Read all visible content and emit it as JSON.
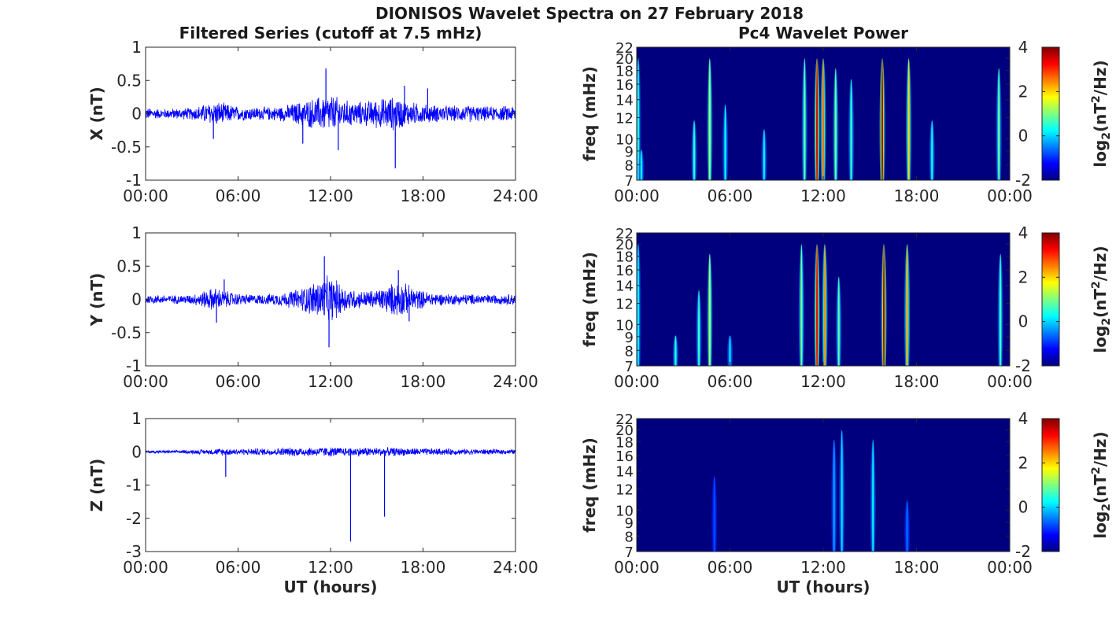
{
  "figure": {
    "title": "DIONISOS Wavelet Spectra on 27 February 2018",
    "left_title": "Filtered Series (cutoff at 7.5 mHz)",
    "right_title": "Pc4 Wavelet Power",
    "time_xlabel": "UT (hours)",
    "colorbar_label_base": "log",
    "colorbar_label_sub": "2",
    "colorbar_label_mid": "(nT",
    "colorbar_label_sup": "2",
    "colorbar_label_end": "/Hz)"
  },
  "chart_data": [
    {
      "type": "line",
      "panel": "X",
      "ylabel": "X (nT)",
      "xlim": [
        "00:00",
        "24:00"
      ],
      "ylim": [
        -1,
        1
      ],
      "xticks": [
        "00:00",
        "06:00",
        "12:00",
        "18:00",
        "24:00"
      ],
      "yticks": [
        "1",
        "0.5",
        "0",
        "-0.5",
        "-1"
      ],
      "ytick_values": [
        1,
        0.5,
        0,
        -0.5,
        -1
      ],
      "series_color": "#0000ff",
      "envelope": {
        "hours": [
          0,
          1,
          2,
          3,
          4,
          4.5,
          5,
          6,
          7,
          8,
          9,
          10,
          11,
          11.5,
          12,
          12.5,
          13,
          14,
          15,
          16,
          16.5,
          17,
          18,
          19,
          20,
          21,
          22,
          23,
          24
        ],
        "amplitude": [
          0.1,
          0.08,
          0.09,
          0.1,
          0.17,
          0.22,
          0.18,
          0.12,
          0.11,
          0.11,
          0.13,
          0.2,
          0.26,
          0.3,
          0.32,
          0.27,
          0.22,
          0.2,
          0.24,
          0.28,
          0.26,
          0.2,
          0.16,
          0.14,
          0.13,
          0.14,
          0.12,
          0.12,
          0.14
        ]
      },
      "spikes": [
        {
          "hour": 4.4,
          "value": -0.38
        },
        {
          "hour": 10.2,
          "value": -0.45
        },
        {
          "hour": 11.7,
          "value": 0.68
        },
        {
          "hour": 12.5,
          "value": -0.55
        },
        {
          "hour": 16.2,
          "value": -0.82
        },
        {
          "hour": 16.8,
          "value": 0.42
        },
        {
          "hour": 18.3,
          "value": 0.38
        }
      ]
    },
    {
      "type": "line",
      "panel": "Y",
      "ylabel": "Y (nT)",
      "xlim": [
        "00:00",
        "24:00"
      ],
      "ylim": [
        -1,
        1
      ],
      "xticks": [
        "00:00",
        "06:00",
        "12:00",
        "18:00",
        "24:00"
      ],
      "yticks": [
        "1",
        "0.5",
        "0",
        "-0.5",
        "-1"
      ],
      "ytick_values": [
        1,
        0.5,
        0,
        -0.5,
        -1
      ],
      "series_color": "#0000ff",
      "envelope": {
        "hours": [
          0,
          1,
          2,
          3,
          4,
          4.5,
          5,
          6,
          7,
          8,
          9,
          10,
          11,
          11.5,
          12,
          12.5,
          13,
          14,
          15,
          16,
          16.5,
          17,
          18,
          19,
          20,
          21,
          22,
          23,
          24
        ],
        "amplitude": [
          0.08,
          0.07,
          0.07,
          0.08,
          0.16,
          0.2,
          0.15,
          0.1,
          0.08,
          0.09,
          0.12,
          0.18,
          0.3,
          0.36,
          0.38,
          0.3,
          0.2,
          0.14,
          0.16,
          0.26,
          0.3,
          0.24,
          0.14,
          0.1,
          0.09,
          0.09,
          0.08,
          0.08,
          0.1
        ]
      },
      "spikes": [
        {
          "hour": 4.6,
          "value": -0.35
        },
        {
          "hour": 5.1,
          "value": 0.3
        },
        {
          "hour": 11.6,
          "value": 0.65
        },
        {
          "hour": 11.9,
          "value": -0.72
        },
        {
          "hour": 16.4,
          "value": 0.44
        },
        {
          "hour": 17.1,
          "value": -0.33
        }
      ]
    },
    {
      "type": "line",
      "panel": "Z",
      "ylabel": "Z (nT)",
      "xlim": [
        "00:00",
        "24:00"
      ],
      "ylim": [
        -3,
        1
      ],
      "xticks": [
        "00:00",
        "06:00",
        "12:00",
        "18:00",
        "24:00"
      ],
      "yticks": [
        "1",
        "0",
        "-1",
        "-2",
        "-3"
      ],
      "ytick_values": [
        1,
        0,
        -1,
        -2,
        -3
      ],
      "series_color": "#0000ff",
      "envelope": {
        "hours": [
          0,
          2,
          4,
          5,
          6,
          8,
          10,
          12,
          13,
          14,
          16,
          18,
          20,
          22,
          24
        ],
        "amplitude": [
          0.05,
          0.05,
          0.08,
          0.12,
          0.1,
          0.12,
          0.15,
          0.16,
          0.14,
          0.15,
          0.14,
          0.12,
          0.1,
          0.09,
          0.08
        ]
      },
      "spikes": [
        {
          "hour": 5.2,
          "value": -0.75
        },
        {
          "hour": 13.3,
          "value": -2.7
        },
        {
          "hour": 15.5,
          "value": -1.95
        }
      ]
    },
    {
      "type": "heatmap",
      "panel": "X power",
      "ylabel": "freq (mHz)",
      "xticks": [
        "00:00",
        "06:00",
        "12:00",
        "18:00",
        "00:00"
      ],
      "yticks": [
        "22",
        "20",
        "18",
        "16",
        "14",
        "12",
        "10",
        "9",
        "8",
        "7"
      ],
      "ytick_values": [
        22,
        20,
        18,
        16,
        14,
        12,
        10,
        9,
        8,
        7
      ],
      "ylim_mhz": [
        7,
        22
      ],
      "yscale": "log",
      "clim": [
        -2,
        4
      ],
      "colorbar_ticks": [
        "4",
        "2",
        "0",
        "-2"
      ],
      "colormap": "jet",
      "background_color": "#00007f",
      "bursts": [
        {
          "hour": 0.1,
          "fmin": 7,
          "fmax": 22,
          "peak": 0.5
        },
        {
          "hour": 0.3,
          "fmin": 7,
          "fmax": 9,
          "peak": 0.2
        },
        {
          "hour": 3.7,
          "fmin": 7,
          "fmax": 12,
          "peak": 0.6
        },
        {
          "hour": 4.7,
          "fmin": 7,
          "fmax": 22,
          "peak": 1.3
        },
        {
          "hour": 5.7,
          "fmin": 7,
          "fmax": 14,
          "peak": 0.3
        },
        {
          "hour": 8.2,
          "fmin": 7,
          "fmax": 11,
          "peak": 0.2
        },
        {
          "hour": 10.8,
          "fmin": 7,
          "fmax": 22,
          "peak": 0.9
        },
        {
          "hour": 11.6,
          "fmin": 7,
          "fmax": 22,
          "peak": 3.6
        },
        {
          "hour": 12.0,
          "fmin": 7,
          "fmax": 22,
          "peak": 2.6
        },
        {
          "hour": 12.8,
          "fmin": 7,
          "fmax": 20,
          "peak": 1.0
        },
        {
          "hour": 13.8,
          "fmin": 7,
          "fmax": 18,
          "peak": 0.6
        },
        {
          "hour": 15.8,
          "fmin": 7,
          "fmax": 22,
          "peak": 3.8
        },
        {
          "hour": 17.5,
          "fmin": 7,
          "fmax": 22,
          "peak": 2.0
        },
        {
          "hour": 19.0,
          "fmin": 7,
          "fmax": 12,
          "peak": 0.4
        },
        {
          "hour": 23.3,
          "fmin": 7,
          "fmax": 20,
          "peak": 0.9
        }
      ]
    },
    {
      "type": "heatmap",
      "panel": "Y power",
      "ylabel": "freq (mHz)",
      "xticks": [
        "00:00",
        "06:00",
        "12:00",
        "18:00",
        "00:00"
      ],
      "yticks": [
        "22",
        "20",
        "18",
        "16",
        "14",
        "12",
        "10",
        "9",
        "8",
        "7"
      ],
      "ytick_values": [
        22,
        20,
        18,
        16,
        14,
        12,
        10,
        9,
        8,
        7
      ],
      "ylim_mhz": [
        7,
        22
      ],
      "yscale": "log",
      "clim": [
        -2,
        4
      ],
      "colorbar_ticks": [
        "4",
        "2",
        "0",
        "-2"
      ],
      "colormap": "jet",
      "background_color": "#00007f",
      "bursts": [
        {
          "hour": 0.1,
          "fmin": 7,
          "fmax": 22,
          "peak": 0.3
        },
        {
          "hour": 2.5,
          "fmin": 7,
          "fmax": 9,
          "peak": 0.5
        },
        {
          "hour": 4.0,
          "fmin": 7,
          "fmax": 14,
          "peak": 0.6
        },
        {
          "hour": 4.7,
          "fmin": 7,
          "fmax": 20,
          "peak": 1.4
        },
        {
          "hour": 6.0,
          "fmin": 7,
          "fmax": 9,
          "peak": 0.1
        },
        {
          "hour": 10.6,
          "fmin": 7,
          "fmax": 22,
          "peak": 1.0
        },
        {
          "hour": 11.6,
          "fmin": 7,
          "fmax": 22,
          "peak": 3.4
        },
        {
          "hour": 12.1,
          "fmin": 7,
          "fmax": 22,
          "peak": 2.4
        },
        {
          "hour": 13.0,
          "fmin": 7,
          "fmax": 16,
          "peak": 0.8
        },
        {
          "hour": 15.9,
          "fmin": 7,
          "fmax": 22,
          "peak": 3.7
        },
        {
          "hour": 17.4,
          "fmin": 7,
          "fmax": 22,
          "peak": 2.3
        },
        {
          "hour": 23.4,
          "fmin": 7,
          "fmax": 20,
          "peak": 0.7
        }
      ]
    },
    {
      "type": "heatmap",
      "panel": "Z power",
      "ylabel": "freq (mHz)",
      "xlabel": "UT (hours)",
      "xticks": [
        "00:00",
        "06:00",
        "12:00",
        "18:00",
        "00:00"
      ],
      "yticks": [
        "22",
        "20",
        "18",
        "16",
        "14",
        "12",
        "10",
        "9",
        "8",
        "7"
      ],
      "ytick_values": [
        22,
        20,
        18,
        16,
        14,
        12,
        10,
        9,
        8,
        7
      ],
      "ylim_mhz": [
        7,
        22
      ],
      "yscale": "log",
      "clim": [
        -2,
        4
      ],
      "colorbar_ticks": [
        "4",
        "2",
        "0",
        "-2"
      ],
      "colormap": "jet",
      "background_color": "#00007f",
      "bursts": [
        {
          "hour": 5.0,
          "fmin": 7,
          "fmax": 14,
          "peak": -0.8
        },
        {
          "hour": 12.7,
          "fmin": 7,
          "fmax": 20,
          "peak": -0.3
        },
        {
          "hour": 13.2,
          "fmin": 7,
          "fmax": 22,
          "peak": 0.1
        },
        {
          "hour": 15.2,
          "fmin": 7,
          "fmax": 20,
          "peak": 0.2
        },
        {
          "hour": 17.4,
          "fmin": 7,
          "fmax": 11,
          "peak": -0.6
        }
      ]
    }
  ]
}
